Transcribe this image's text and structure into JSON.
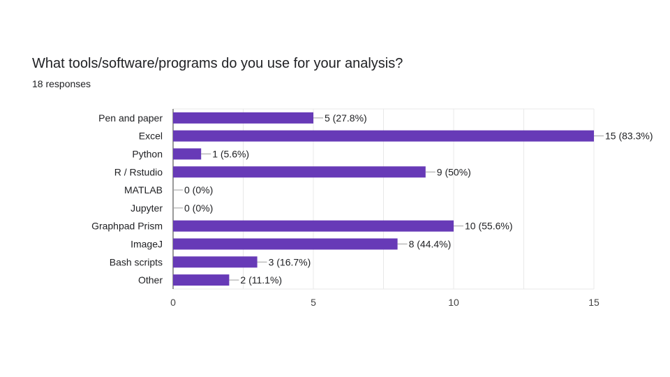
{
  "question": {
    "title": "What tools/software/programs do you use for your analysis?",
    "responses_label": "18 responses"
  },
  "colors": {
    "bar": "#673ab7",
    "grid": "#e8e8e8",
    "text": "#202124",
    "axis_tick": "#424242"
  },
  "chart_data": {
    "type": "bar",
    "orientation": "horizontal",
    "title": "What tools/software/programs do you use for your analysis?",
    "subtitle": "18 responses",
    "xlabel": "",
    "ylabel": "",
    "categories": [
      "Pen and paper",
      "Excel",
      "Python",
      "R / Rstudio",
      "MATLAB",
      "Jupyter",
      "Graphpad Prism",
      "ImageJ",
      "Bash scripts",
      "Other"
    ],
    "values": [
      5,
      15,
      1,
      9,
      0,
      0,
      10,
      8,
      3,
      2
    ],
    "data_labels": [
      "5 (27.8%)",
      "15 (83.3%)",
      "1 (5.6%)",
      "9 (50%)",
      "0 (0%)",
      "0 (0%)",
      "10 (55.6%)",
      "8 (44.4%)",
      "3 (16.7%)",
      "2 (11.1%)"
    ],
    "xlim": [
      0,
      15
    ],
    "xticks": [
      "0",
      "5",
      "10",
      "15"
    ],
    "grid": true,
    "legend": "none"
  }
}
